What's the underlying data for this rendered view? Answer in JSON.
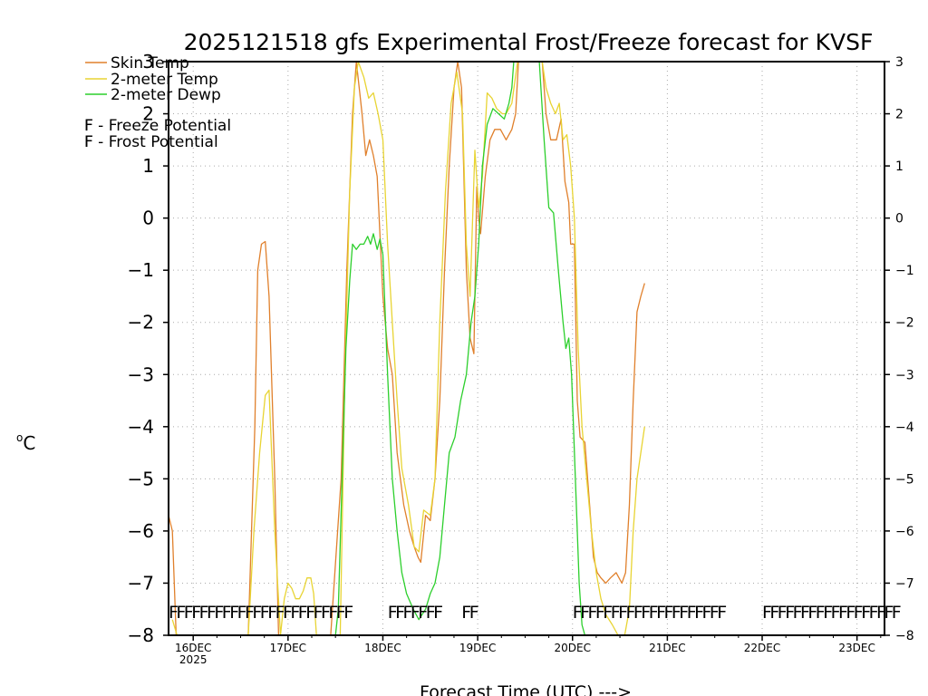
{
  "chart_data": {
    "type": "line",
    "title": "2025121518 gfs Experimental Frost/Freeze forecast for KVSF",
    "xlabel": "Forecast Time (UTC) --->",
    "ylabel": "°C",
    "ylabel_sup": "o",
    "ylabel_main": "C",
    "ylim": [
      -8,
      3
    ],
    "xlim": [
      -0.26,
      7.29
    ],
    "y_ticks": [
      -8,
      -7,
      -6,
      -5,
      -4,
      -3,
      -2,
      -1,
      0,
      1,
      2,
      3
    ],
    "y_tick_labels": [
      "−8",
      "−7",
      "−6",
      "−5",
      "−4",
      "−3",
      "−2",
      "−1",
      "0",
      "1",
      "2",
      "3"
    ],
    "x_ticks": [
      {
        "day": 0,
        "label": "16DEC",
        "sub": "2025"
      },
      {
        "day": 1,
        "label": "17DEC",
        "sub": ""
      },
      {
        "day": 2,
        "label": "18DEC",
        "sub": ""
      },
      {
        "day": 3,
        "label": "19DEC",
        "sub": ""
      },
      {
        "day": 4,
        "label": "20DEC",
        "sub": ""
      },
      {
        "day": 5,
        "label": "21DEC",
        "sub": ""
      },
      {
        "day": 6,
        "label": "22DEC",
        "sub": ""
      },
      {
        "day": 7,
        "label": "23DEC",
        "sub": ""
      }
    ],
    "grid": true,
    "legend_position": "top-left",
    "series": [
      {
        "name": "Skin Temp",
        "color": "#e0802c",
        "values": [
          [
            -0.26,
            -5.7
          ],
          [
            -0.22,
            -6.0
          ],
          [
            -0.18,
            -8.0
          ],
          [
            0.58,
            -8.0
          ],
          [
            0.65,
            -4.0
          ],
          [
            0.68,
            -1.0
          ],
          [
            0.72,
            -0.5
          ],
          [
            0.76,
            -0.45
          ],
          [
            0.8,
            -1.5
          ],
          [
            0.86,
            -5.0
          ],
          [
            0.9,
            -8.0
          ],
          [
            1.0,
            -8.0
          ],
          [
            1.2,
            -8.0
          ],
          [
            1.45,
            -8.0
          ],
          [
            1.56,
            -5.0
          ],
          [
            1.62,
            -1.0
          ],
          [
            1.68,
            2.0
          ],
          [
            1.72,
            3.0
          ],
          [
            1.78,
            2.0
          ],
          [
            1.82,
            1.2
          ],
          [
            1.86,
            1.5
          ],
          [
            1.9,
            1.2
          ],
          [
            1.94,
            0.8
          ],
          [
            2.0,
            -1.5
          ],
          [
            2.05,
            -2.5
          ],
          [
            2.1,
            -3.0
          ],
          [
            2.15,
            -4.5
          ],
          [
            2.22,
            -5.5
          ],
          [
            2.28,
            -6.0
          ],
          [
            2.33,
            -6.3
          ],
          [
            2.37,
            -6.5
          ],
          [
            2.4,
            -6.6
          ],
          [
            2.45,
            -5.7
          ],
          [
            2.5,
            -5.8
          ],
          [
            2.55,
            -5.0
          ],
          [
            2.6,
            -3.5
          ],
          [
            2.65,
            -1.0
          ],
          [
            2.7,
            1.0
          ],
          [
            2.75,
            2.5
          ],
          [
            2.79,
            3.0
          ],
          [
            2.83,
            2.5
          ],
          [
            2.88,
            -1.0
          ],
          [
            2.92,
            -2.3
          ],
          [
            2.96,
            -2.6
          ],
          [
            2.99,
            0.6
          ],
          [
            3.01,
            0.0
          ],
          [
            3.03,
            -0.3
          ],
          [
            3.08,
            0.8
          ],
          [
            3.13,
            1.5
          ],
          [
            3.18,
            1.7
          ],
          [
            3.24,
            1.7
          ],
          [
            3.3,
            1.5
          ],
          [
            3.36,
            1.7
          ],
          [
            3.4,
            2.0
          ],
          [
            3.43,
            3.0
          ],
          [
            3.68,
            3.0
          ],
          [
            3.72,
            2.0
          ],
          [
            3.77,
            1.5
          ],
          [
            3.83,
            1.5
          ],
          [
            3.88,
            1.9
          ],
          [
            3.92,
            0.7
          ],
          [
            3.96,
            0.3
          ],
          [
            3.98,
            -0.5
          ],
          [
            4.02,
            -0.5
          ],
          [
            4.05,
            -3.5
          ],
          [
            4.08,
            -4.2
          ],
          [
            4.13,
            -4.3
          ],
          [
            4.18,
            -5.5
          ],
          [
            4.22,
            -6.5
          ],
          [
            4.26,
            -6.8
          ],
          [
            4.3,
            -6.9
          ],
          [
            4.35,
            -7.0
          ],
          [
            4.4,
            -6.9
          ],
          [
            4.46,
            -6.8
          ],
          [
            4.52,
            -7.0
          ],
          [
            4.56,
            -6.8
          ],
          [
            4.6,
            -5.5
          ],
          [
            4.64,
            -3.5
          ],
          [
            4.68,
            -1.8
          ],
          [
            4.72,
            -1.5
          ],
          [
            4.76,
            -1.25
          ]
        ]
      },
      {
        "name": "2-meter Temp",
        "color": "#e8d433",
        "values": [
          [
            -0.22,
            -7.7
          ],
          [
            -0.17,
            -8.0
          ],
          [
            0.58,
            -8.0
          ],
          [
            0.64,
            -6.0
          ],
          [
            0.7,
            -4.5
          ],
          [
            0.76,
            -3.4
          ],
          [
            0.8,
            -3.3
          ],
          [
            0.86,
            -6.0
          ],
          [
            0.92,
            -8.0
          ],
          [
            0.96,
            -7.3
          ],
          [
            1.0,
            -7.0
          ],
          [
            1.04,
            -7.1
          ],
          [
            1.08,
            -7.3
          ],
          [
            1.12,
            -7.3
          ],
          [
            1.16,
            -7.15
          ],
          [
            1.2,
            -6.9
          ],
          [
            1.24,
            -6.9
          ],
          [
            1.27,
            -7.2
          ],
          [
            1.3,
            -8.0
          ],
          [
            1.55,
            -8.0
          ],
          [
            1.6,
            -3.0
          ],
          [
            1.65,
            0.5
          ],
          [
            1.7,
            2.5
          ],
          [
            1.74,
            3.0
          ],
          [
            1.8,
            2.7
          ],
          [
            1.85,
            2.3
          ],
          [
            1.9,
            2.4
          ],
          [
            1.95,
            2.0
          ],
          [
            2.0,
            1.5
          ],
          [
            2.05,
            -0.5
          ],
          [
            2.1,
            -2.0
          ],
          [
            2.15,
            -3.5
          ],
          [
            2.2,
            -4.8
          ],
          [
            2.27,
            -5.5
          ],
          [
            2.33,
            -6.3
          ],
          [
            2.38,
            -6.4
          ],
          [
            2.43,
            -5.6
          ],
          [
            2.5,
            -5.7
          ],
          [
            2.55,
            -5.0
          ],
          [
            2.6,
            -2.0
          ],
          [
            2.66,
            0.5
          ],
          [
            2.72,
            2.2
          ],
          [
            2.78,
            2.8
          ],
          [
            2.84,
            2.0
          ],
          [
            2.88,
            -0.5
          ],
          [
            2.92,
            -1.5
          ],
          [
            2.97,
            1.3
          ],
          [
            3.01,
            0.2
          ],
          [
            3.05,
            0.8
          ],
          [
            3.1,
            2.4
          ],
          [
            3.15,
            2.3
          ],
          [
            3.2,
            2.1
          ],
          [
            3.26,
            2.0
          ],
          [
            3.3,
            2.0
          ],
          [
            3.36,
            2.2
          ],
          [
            3.42,
            3.0
          ],
          [
            3.68,
            3.0
          ],
          [
            3.72,
            2.5
          ],
          [
            3.77,
            2.2
          ],
          [
            3.82,
            2.0
          ],
          [
            3.86,
            2.2
          ],
          [
            3.9,
            1.5
          ],
          [
            3.94,
            1.6
          ],
          [
            3.98,
            1.0
          ],
          [
            4.02,
            0.0
          ],
          [
            4.06,
            -2.5
          ],
          [
            4.1,
            -4.0
          ],
          [
            4.15,
            -5.0
          ],
          [
            4.2,
            -6.0
          ],
          [
            4.25,
            -6.8
          ],
          [
            4.3,
            -7.3
          ],
          [
            4.35,
            -7.6
          ],
          [
            4.42,
            -7.8
          ],
          [
            4.48,
            -8.0
          ],
          [
            4.55,
            -8.0
          ],
          [
            4.6,
            -7.5
          ],
          [
            4.64,
            -6.0
          ],
          [
            4.68,
            -5.0
          ],
          [
            4.72,
            -4.5
          ],
          [
            4.76,
            -4.0
          ]
        ]
      },
      {
        "name": "2-meter Dewp",
        "color": "#2ccf2c",
        "values": [
          [
            1.5,
            -8.0
          ],
          [
            1.53,
            -7.5
          ],
          [
            1.57,
            -5.0
          ],
          [
            1.61,
            -2.5
          ],
          [
            1.65,
            -1.2
          ],
          [
            1.68,
            -0.5
          ],
          [
            1.72,
            -0.6
          ],
          [
            1.76,
            -0.5
          ],
          [
            1.8,
            -0.5
          ],
          [
            1.84,
            -0.35
          ],
          [
            1.87,
            -0.5
          ],
          [
            1.9,
            -0.3
          ],
          [
            1.94,
            -0.6
          ],
          [
            1.97,
            -0.4
          ],
          [
            2.0,
            -0.7
          ],
          [
            2.05,
            -3.0
          ],
          [
            2.1,
            -5.0
          ],
          [
            2.15,
            -6.0
          ],
          [
            2.2,
            -6.8
          ],
          [
            2.25,
            -7.2
          ],
          [
            2.32,
            -7.5
          ],
          [
            2.38,
            -7.7
          ],
          [
            2.45,
            -7.5
          ],
          [
            2.5,
            -7.2
          ],
          [
            2.55,
            -7.0
          ],
          [
            2.6,
            -6.5
          ],
          [
            2.65,
            -5.5
          ],
          [
            2.7,
            -4.5
          ],
          [
            2.76,
            -4.2
          ],
          [
            2.82,
            -3.5
          ],
          [
            2.88,
            -3.0
          ],
          [
            2.93,
            -2.0
          ],
          [
            2.97,
            -1.5
          ],
          [
            3.01,
            -0.5
          ],
          [
            3.05,
            1.0
          ],
          [
            3.1,
            1.8
          ],
          [
            3.16,
            2.1
          ],
          [
            3.22,
            2.0
          ],
          [
            3.28,
            1.9
          ],
          [
            3.33,
            2.2
          ],
          [
            3.36,
            2.5
          ],
          [
            3.38,
            3.0
          ],
          [
            3.65,
            3.0
          ],
          [
            3.7,
            1.5
          ],
          [
            3.75,
            0.2
          ],
          [
            3.8,
            0.1
          ],
          [
            3.85,
            -1.0
          ],
          [
            3.9,
            -2.0
          ],
          [
            3.93,
            -2.5
          ],
          [
            3.96,
            -2.3
          ],
          [
            3.99,
            -3.0
          ],
          [
            4.03,
            -5.0
          ],
          [
            4.07,
            -7.0
          ],
          [
            4.1,
            -7.8
          ],
          [
            4.13,
            -8.0
          ]
        ]
      }
    ],
    "freeze_markers": {
      "symbol": "F",
      "color": "#dc1f8f",
      "y": -7.55,
      "ranges": [
        [
          -0.26,
          1.66
        ],
        [
          2.05,
          2.58
        ],
        [
          2.83,
          2.93
        ],
        [
          4.0,
          5.6
        ],
        [
          6.0,
          7.38
        ]
      ]
    },
    "legend": [
      {
        "label": "Skin Temp",
        "color": "#e0802c",
        "kind": "line"
      },
      {
        "label": "2-meter Temp",
        "color": "#e8d433",
        "kind": "line"
      },
      {
        "label": "2-meter Dewp",
        "color": "#2ccf2c",
        "kind": "line"
      },
      {
        "label": "F - Freeze Potential",
        "color": "#dc1f8f",
        "kind": "F"
      },
      {
        "label": "F - Frost Potential",
        "color": "#4a5cff",
        "kind": "F"
      }
    ]
  }
}
